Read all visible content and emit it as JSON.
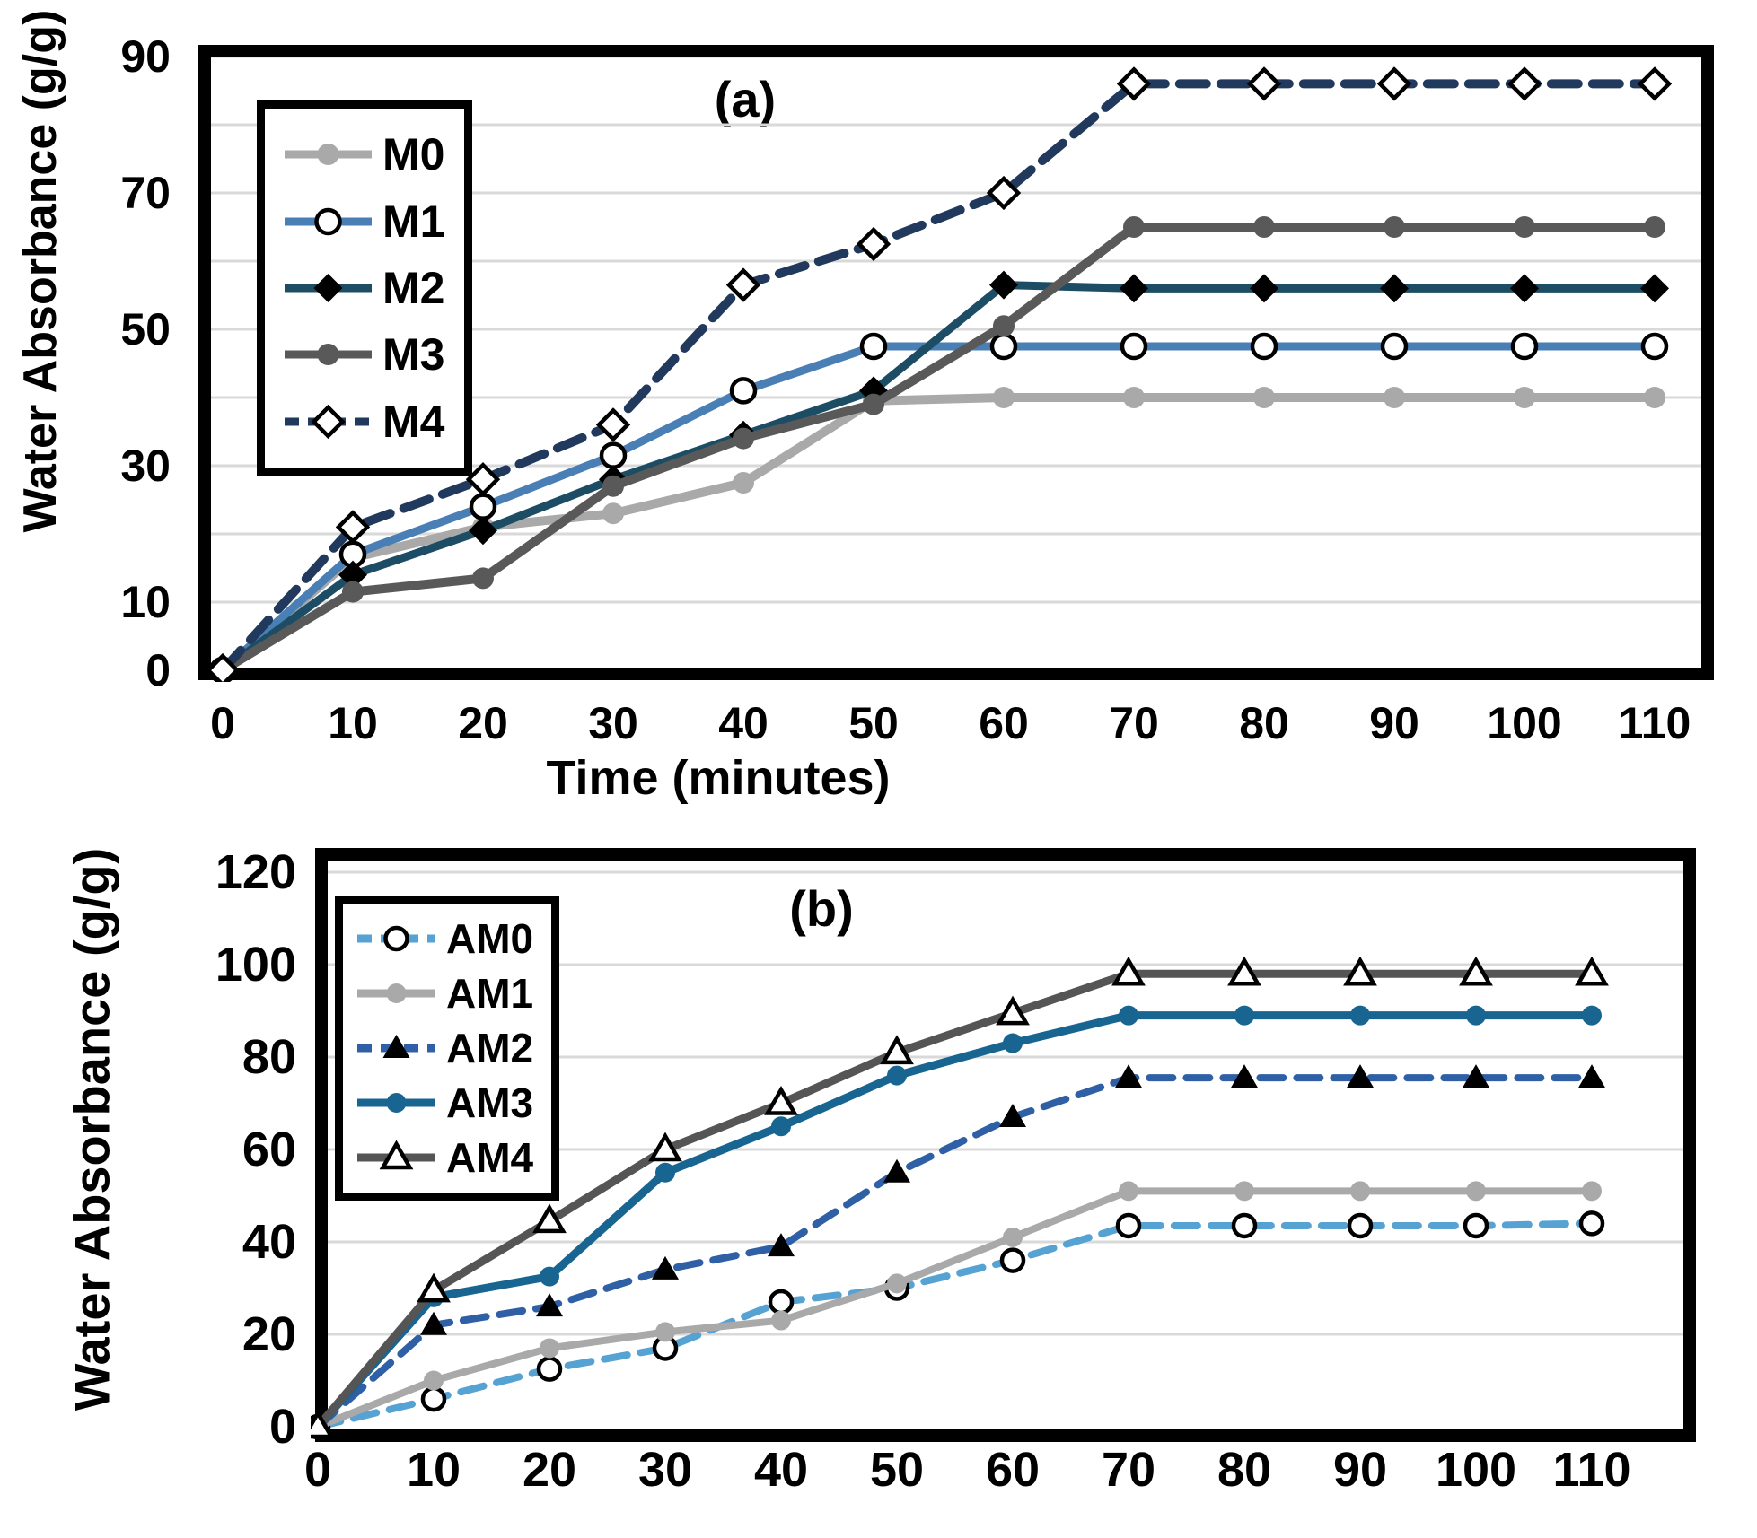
{
  "figure": {
    "background": "#ffffff",
    "grid_color": "#d9d9d9",
    "frame_color": "#000000"
  },
  "chart_data": [
    {
      "type": "line",
      "title": "(a)",
      "xlabel": "Time (minutes)",
      "ylabel": "Water Absorbance (g/g)",
      "x": [
        0,
        10,
        20,
        30,
        40,
        50,
        60,
        70,
        80,
        90,
        100,
        110
      ],
      "xtick_labels": [
        "0",
        "10",
        "20",
        "30",
        "40",
        "50",
        "60",
        "70",
        "80",
        "90",
        "100",
        "110"
      ],
      "ylim": [
        0,
        90
      ],
      "yticks": [
        90,
        70,
        50,
        30,
        10,
        0
      ],
      "grid_step": 10,
      "grid": true,
      "legend_position": "upper-left",
      "series": [
        {
          "name": "M0",
          "color": "#a9a9a9",
          "line": "solid",
          "marker": "circle",
          "marker_style": "filled",
          "marker_color": "#a9a9a9",
          "values": [
            0,
            16.5,
            21,
            23,
            27.5,
            39.5,
            40,
            40,
            40,
            40,
            40,
            40
          ]
        },
        {
          "name": "M1",
          "color": "#4a7fb5",
          "line": "solid",
          "marker": "circle",
          "marker_style": "open",
          "marker_color": "#ffffff",
          "values": [
            0,
            17,
            24,
            31.5,
            41,
            47.5,
            47.5,
            47.5,
            47.5,
            47.5,
            47.5,
            47.5
          ]
        },
        {
          "name": "M2",
          "color": "#1d4d64",
          "line": "solid",
          "marker": "diamond",
          "marker_style": "filled",
          "marker_color": "#000000",
          "values": [
            0,
            14,
            20.5,
            28,
            34.5,
            41,
            56.5,
            56,
            56,
            56,
            56,
            56
          ]
        },
        {
          "name": "M3",
          "color": "#595959",
          "line": "solid",
          "marker": "circle",
          "marker_style": "filled",
          "marker_color": "#595959",
          "values": [
            0,
            11.5,
            13.5,
            27,
            34,
            39,
            50.5,
            65,
            65,
            65,
            65,
            65
          ]
        },
        {
          "name": "M4",
          "color": "#20395c",
          "line": "dashed",
          "marker": "diamond",
          "marker_style": "open",
          "marker_color": "#ffffff",
          "values": [
            0,
            21,
            28,
            36,
            56.5,
            62.5,
            70,
            86,
            86,
            86,
            86,
            86
          ]
        }
      ]
    },
    {
      "type": "line",
      "title": "(b)",
      "ylabel": "Water Absorbance (g/g)",
      "x": [
        0,
        10,
        20,
        30,
        40,
        50,
        60,
        70,
        80,
        90,
        100,
        110
      ],
      "xtick_labels": [
        "0",
        "10",
        "20",
        "30",
        "40",
        "50",
        "60",
        "70",
        "80",
        "90",
        "100",
        "110"
      ],
      "ylim": [
        0,
        120
      ],
      "yticks": [
        120,
        100,
        80,
        60,
        40,
        20,
        0
      ],
      "grid_step": 20,
      "grid": true,
      "legend_position": "upper-left",
      "series": [
        {
          "name": "AM0",
          "color": "#56a2d3",
          "line": "dashed",
          "marker": "circle",
          "marker_style": "open",
          "marker_color": "#ffffff",
          "values": [
            0,
            6,
            12.5,
            17,
            27,
            30,
            36,
            43.5,
            43.5,
            43.5,
            43.5,
            44
          ]
        },
        {
          "name": "AM1",
          "color": "#a9a9a9",
          "line": "solid",
          "marker": "circle",
          "marker_style": "filled",
          "marker_color": "#a9a9a9",
          "values": [
            0,
            10,
            17,
            20.5,
            23,
            31,
            41,
            51,
            51,
            51,
            51,
            51
          ]
        },
        {
          "name": "AM2",
          "color": "#2f5fa5",
          "line": "dashed",
          "marker": "triangle",
          "marker_style": "filled",
          "marker_color": "#000000",
          "values": [
            0,
            22,
            26,
            34,
            39,
            55,
            67,
            75.5,
            75.5,
            75.5,
            75.5,
            75.5
          ]
        },
        {
          "name": "AM3",
          "color": "#176590",
          "line": "solid",
          "marker": "circle",
          "marker_style": "filled",
          "marker_color": "#176590",
          "values": [
            0,
            28,
            32.5,
            55,
            65,
            76,
            83,
            89,
            89,
            89,
            89,
            89
          ]
        },
        {
          "name": "AM4",
          "color": "#555555",
          "line": "solid",
          "marker": "triangle",
          "marker_style": "open",
          "marker_color": "#ffffff",
          "values": [
            0,
            29.5,
            44.5,
            60,
            70,
            81,
            89.5,
            98,
            98,
            98,
            98,
            98
          ]
        }
      ]
    }
  ]
}
